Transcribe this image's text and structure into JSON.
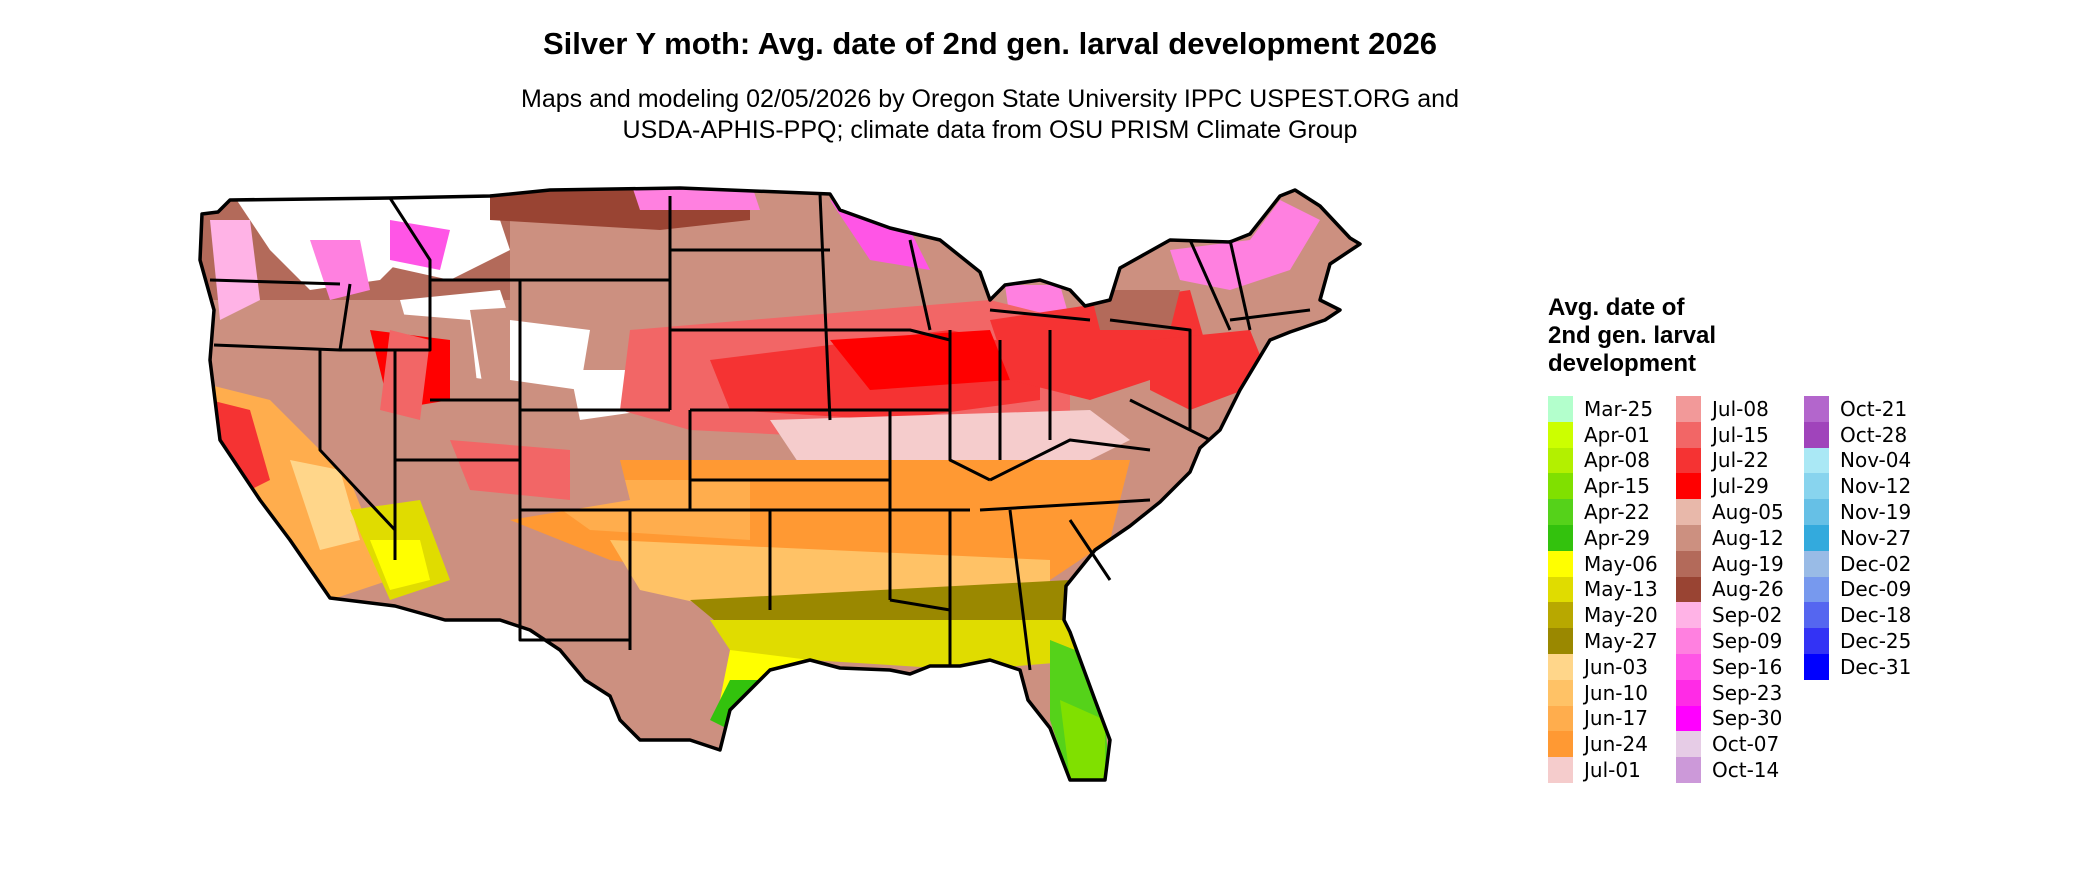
{
  "title": "Silver Y moth: Avg. date of 2nd gen. larval development 2026",
  "subtitle": "Maps and modeling 02/05/2026 by Oregon State University IPPC USPEST.ORG and USDA-APHIS-PPQ; climate data from OSU PRISM Climate Group",
  "subtitle_lines": [
    "Maps and modeling 02/05/2026 by Oregon State University IPPC USPEST.ORG and",
    "USDA-APHIS-PPQ; climate data from OSU PRISM Climate Group"
  ],
  "legend": {
    "title_lines": [
      "Avg. date of",
      "2nd gen. larval",
      "development"
    ],
    "columns": [
      [
        {
          "label": "Mar-25",
          "color": "#b3ffcc"
        },
        {
          "label": "Apr-01",
          "color": "#ccff00"
        },
        {
          "label": "Apr-08",
          "color": "#b3f000"
        },
        {
          "label": "Apr-15",
          "color": "#80e000"
        },
        {
          "label": "Apr-22",
          "color": "#55d21a"
        },
        {
          "label": "Apr-29",
          "color": "#33c20d"
        },
        {
          "label": "May-06",
          "color": "#ffff00"
        },
        {
          "label": "May-13",
          "color": "#e0dc00"
        },
        {
          "label": "May-20",
          "color": "#b8a800"
        },
        {
          "label": "May-27",
          "color": "#9a8800"
        },
        {
          "label": "Jun-03",
          "color": "#ffd68a"
        },
        {
          "label": "Jun-10",
          "color": "#ffc266"
        },
        {
          "label": "Jun-17",
          "color": "#ffad4d"
        },
        {
          "label": "Jun-24",
          "color": "#ff9933"
        },
        {
          "label": "Jul-01",
          "color": "#f5cccc"
        }
      ],
      [
        {
          "label": "Jul-08",
          "color": "#f29999"
        },
        {
          "label": "Jul-15",
          "color": "#f26666"
        },
        {
          "label": "Jul-22",
          "color": "#f53333"
        },
        {
          "label": "Jul-29",
          "color": "#ff0000"
        },
        {
          "label": "Aug-05",
          "color": "#e8b8aa"
        },
        {
          "label": "Aug-12",
          "color": "#cc9080"
        },
        {
          "label": "Aug-19",
          "color": "#b36a5a"
        },
        {
          "label": "Aug-26",
          "color": "#994433"
        },
        {
          "label": "Sep-02",
          "color": "#ffb3e6"
        },
        {
          "label": "Sep-09",
          "color": "#ff80e0"
        },
        {
          "label": "Sep-16",
          "color": "#ff55e6"
        },
        {
          "label": "Sep-23",
          "color": "#ff2be6"
        },
        {
          "label": "Sep-30",
          "color": "#ff00ff"
        },
        {
          "label": "Oct-07",
          "color": "#e6cce6"
        },
        {
          "label": "Oct-14",
          "color": "#cc99d9"
        }
      ],
      [
        {
          "label": "Oct-21",
          "color": "#b366cc"
        },
        {
          "label": "Oct-28",
          "color": "#a044bb"
        },
        {
          "label": "Nov-04",
          "color": "#aae8f5"
        },
        {
          "label": "Nov-12",
          "color": "#88d4ee"
        },
        {
          "label": "Nov-19",
          "color": "#66c0e6"
        },
        {
          "label": "Nov-27",
          "color": "#33aadd"
        },
        {
          "label": "Dec-02",
          "color": "#99bbe6"
        },
        {
          "label": "Dec-09",
          "color": "#7799ee"
        },
        {
          "label": "Dec-18",
          "color": "#5566f0"
        },
        {
          "label": "Dec-25",
          "color": "#3333f5"
        },
        {
          "label": "Dec-31",
          "color": "#0000ff"
        }
      ]
    ]
  }
}
